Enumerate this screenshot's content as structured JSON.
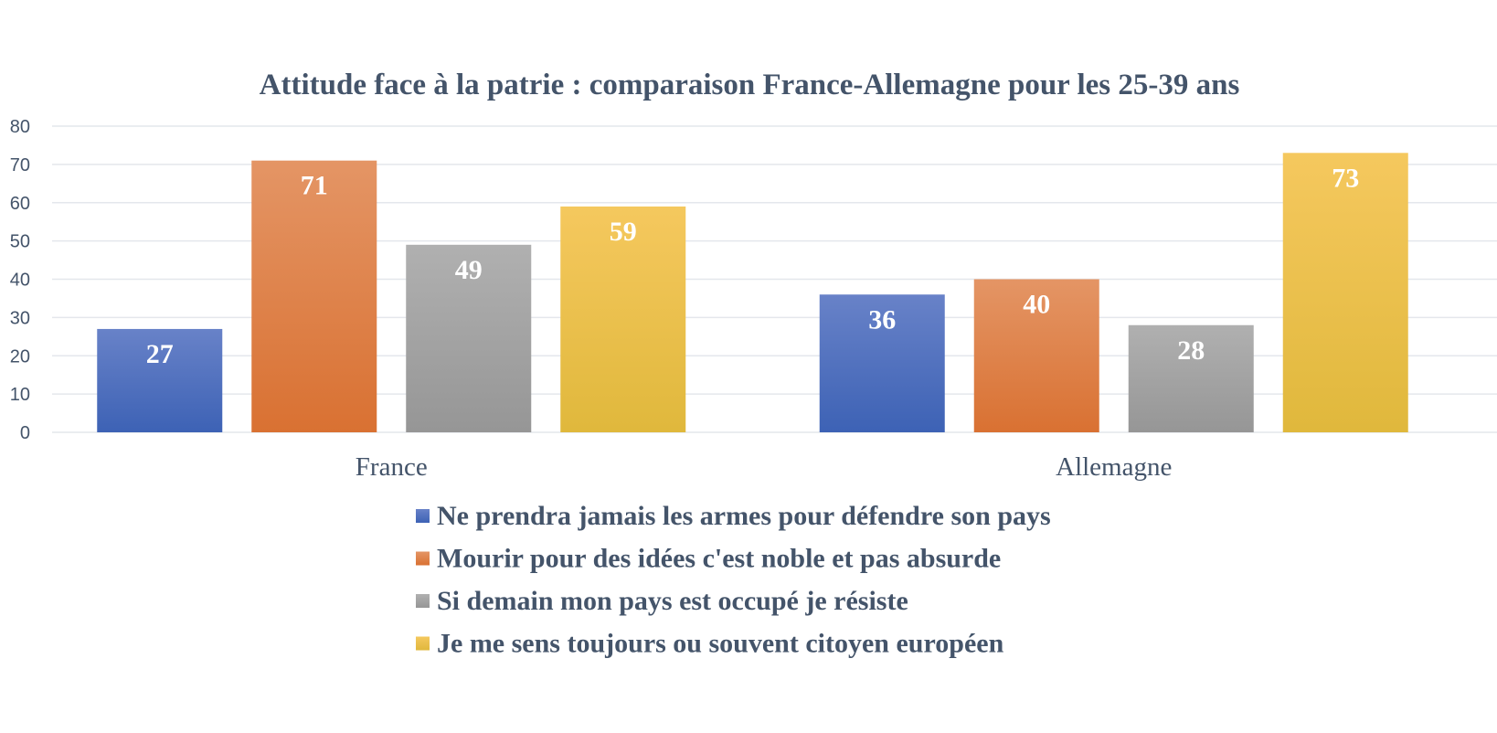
{
  "chart_data": {
    "type": "bar",
    "title": "Attitude face à la patrie : comparaison France-Allemagne pour les 25-39 ans",
    "xlabel": "",
    "ylabel": "",
    "ylim": [
      0,
      80
    ],
    "yticks": [
      0,
      10,
      20,
      30,
      40,
      50,
      60,
      70,
      80
    ],
    "grid": true,
    "legend_position": "bottom",
    "categories": [
      "France",
      "Allemagne"
    ],
    "series": [
      {
        "name": "Ne prendra jamais les armes pour défendre son pays",
        "values": [
          27,
          36
        ],
        "color_top": "#6882c8",
        "color_bottom": "#3d62b5"
      },
      {
        "name": "Mourir pour des idées c'est noble et pas absurde",
        "values": [
          71,
          40
        ],
        "color_top": "#e49565",
        "color_bottom": "#d97132"
      },
      {
        "name": "Si demain mon pays est occupé je résiste",
        "values": [
          49,
          28
        ],
        "color_top": "#b0b0b0",
        "color_bottom": "#969696"
      },
      {
        "name": "Je me sens toujours ou souvent citoyen européen",
        "values": [
          59,
          73
        ],
        "color_top": "#f5c85e",
        "color_bottom": "#e0b83c"
      }
    ],
    "data_labels": true
  }
}
